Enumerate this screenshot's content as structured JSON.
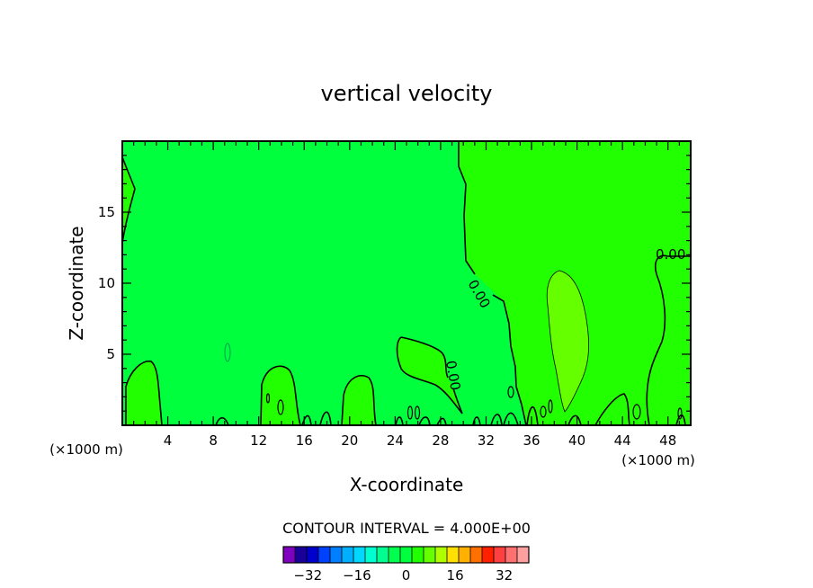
{
  "chart_data": {
    "type": "contour",
    "title": "vertical velocity",
    "xlabel": "X-coordinate",
    "ylabel": "Z-coordinate",
    "x_unit_label": "(×1000 m)",
    "x_ticks": [
      4,
      8,
      12,
      16,
      20,
      24,
      28,
      32,
      36,
      40,
      44,
      48
    ],
    "y_ticks": [
      5,
      10,
      15
    ],
    "xlim": [
      0,
      50
    ],
    "ylim": [
      0,
      20
    ],
    "contour_interval_text": "CONTOUR INTERVAL = 4.000E+00",
    "contour_labels": [
      "0.00",
      "0.00",
      "0.00"
    ],
    "colors": {
      "background_field": "#00ff3c",
      "positive_region": "#22ff00",
      "strong_positive_region": "#66ff00",
      "contour_line": "#000000"
    },
    "colorbar": {
      "tick_labels": [
        "−32",
        "−16",
        "0",
        "16",
        "32"
      ],
      "tick_values": [
        -32,
        -16,
        0,
        16,
        32
      ],
      "range": [
        -40,
        40
      ],
      "colors": [
        "#8000c0",
        "#1a0099",
        "#0000cc",
        "#0040ff",
        "#0080ff",
        "#00b0ff",
        "#00d8ff",
        "#00ffd0",
        "#00ff90",
        "#00ff50",
        "#00ff3c",
        "#22ff00",
        "#66ff00",
        "#b0ff00",
        "#ffe000",
        "#ffb000",
        "#ff7000",
        "#ff2000",
        "#ff4040",
        "#ff7070",
        "#ffa0a0"
      ]
    }
  }
}
